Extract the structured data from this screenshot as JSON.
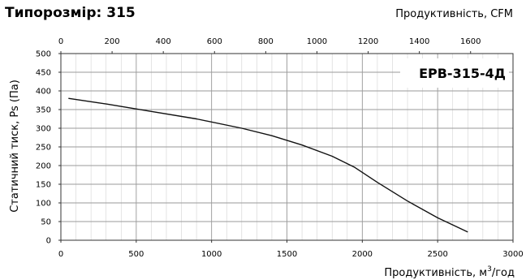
{
  "chart_data": {
    "type": "line",
    "title": "Типорозмір: 315",
    "model_label": "EPB-315-4Д",
    "xlabel_top": "Продуктивність, CFM",
    "xlabel_bottom_base": "Продуктивність, м",
    "xlabel_bottom_sup": "3",
    "xlabel_bottom_tail": "/год",
    "ylabel": "Статичний тиск, Ps (Па)",
    "xlim": [
      0,
      3000
    ],
    "ylim": [
      0,
      500
    ],
    "x_ticks": [
      "0",
      "500",
      "1000",
      "1500",
      "2000",
      "2500",
      "3000"
    ],
    "y_ticks": [
      "0",
      "50",
      "100",
      "150",
      "200",
      "250",
      "300",
      "350",
      "400",
      "450",
      "500"
    ],
    "x2lim": [
      0,
      1765.7
    ],
    "x2_ticks": [
      "0",
      "200",
      "400",
      "600",
      "800",
      "1000",
      "1200",
      "1400",
      "1600"
    ],
    "grid": true,
    "curve_color": "#111111",
    "series": [
      {
        "x": [
          50,
          300,
          600,
          900,
          1200,
          1400,
          1600,
          1800,
          1950,
          2100,
          2300,
          2500,
          2700
        ],
        "y": [
          380,
          365,
          345,
          325,
          300,
          280,
          255,
          225,
          195,
          155,
          105,
          60,
          22
        ]
      }
    ]
  }
}
